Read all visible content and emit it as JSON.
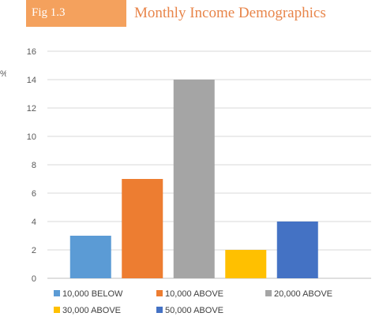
{
  "figure": {
    "label": "Fig 1.3",
    "title": "Monthly Income Demographics",
    "badge_color": "#f4a15d",
    "title_color": "#e8854a",
    "left_mark": "%"
  },
  "chart_data": {
    "type": "bar",
    "title": "Monthly Income Demographics",
    "xlabel": "",
    "ylabel": "",
    "ylim": [
      0,
      16
    ],
    "yticks": [
      0,
      2,
      4,
      6,
      8,
      10,
      12,
      14,
      16
    ],
    "grid": true,
    "legend_position": "bottom",
    "categories": [
      "10,000 BELOW",
      "10,000 ABOVE",
      "20,000 ABOVE",
      "30,000 ABOVE",
      "50,000 ABOVE"
    ],
    "values": [
      3,
      7,
      14,
      2,
      4
    ],
    "colors": [
      "#5b9bd5",
      "#ed7d31",
      "#a5a5a5",
      "#ffc000",
      "#4472c4"
    ]
  }
}
